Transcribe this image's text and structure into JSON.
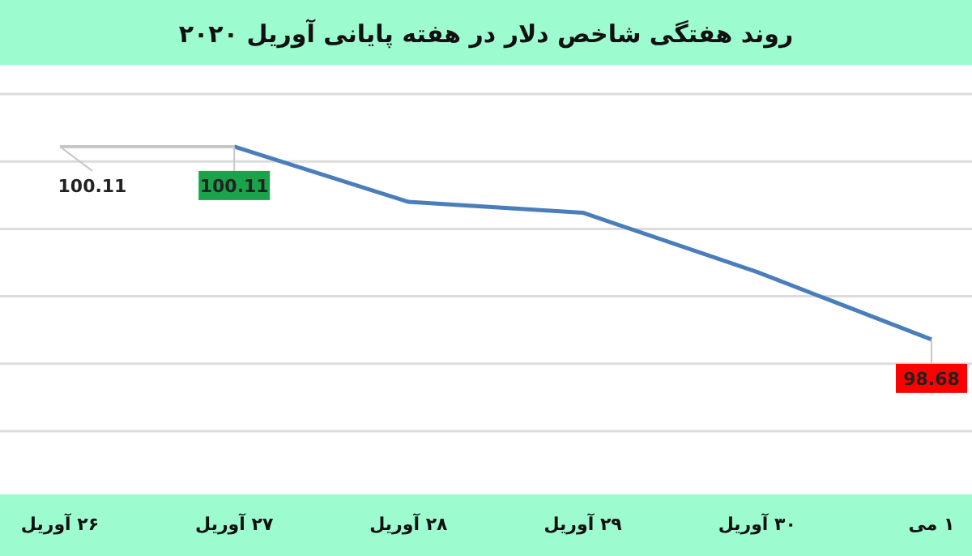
{
  "chart_data": {
    "type": "line",
    "title": "روند هفتگی شاخص دلار در هفته پایانی آوریل ۲۰۲۰",
    "categories": [
      "۲۶ آوریل",
      "۲۷ آوریل",
      "۲۸ آوریل",
      "۲۹ آوریل",
      "۳۰ آوریل",
      "۱ می"
    ],
    "series": [
      {
        "color": "#c8c8c8",
        "values": [
          100.11,
          100.11,
          null,
          null,
          null,
          null
        ],
        "value_labels": [
          "100.11",
          null,
          null,
          null,
          null,
          null
        ]
      },
      {
        "color": "#4a7ebb",
        "values": [
          null,
          100.11,
          99.7,
          99.62,
          99.18,
          98.68
        ],
        "value_labels": [
          null,
          "100.11",
          null,
          null,
          null,
          "98.68"
        ]
      }
    ],
    "ylim": [
      98,
      100.5
    ],
    "yticks": [
      {
        "value": 98,
        "label": null
      },
      {
        "value": 98.5,
        "label": null
      },
      {
        "value": 99,
        "label": null
      },
      {
        "value": 99.5,
        "label": null
      },
      {
        "value": 100,
        "label": null
      },
      {
        "value": 100.5,
        "label": null
      }
    ],
    "grid": "y",
    "tick_labels": "x",
    "marker": "none",
    "line_style": "solid"
  }
}
